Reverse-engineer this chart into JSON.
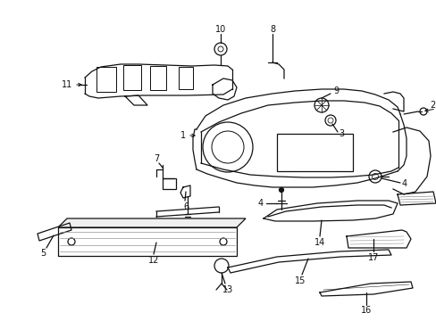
{
  "background_color": "#ffffff",
  "line_color": "#111111",
  "fig_width": 4.89,
  "fig_height": 3.6,
  "dpi": 100,
  "lw": 0.9,
  "label_fontsize": 7.0
}
